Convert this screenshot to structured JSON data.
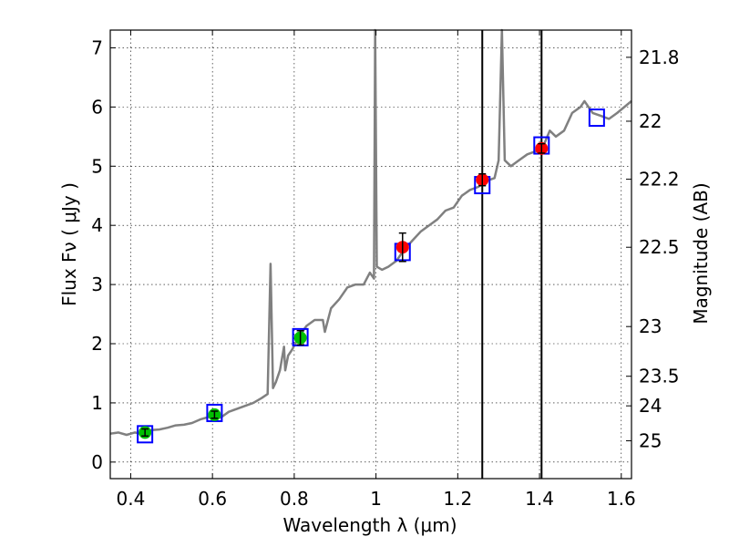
{
  "chart_data": {
    "type": "scatter",
    "xlabel": "Wavelength  λ (μm)",
    "ylabel": "Flux  Fν  ( μJy )",
    "y2label": "Magnitude (AB)",
    "xlim": [
      0.35,
      1.625
    ],
    "ylim": [
      -0.28,
      7.3
    ],
    "grid": true,
    "x_ticks": [
      {
        "value": 0.4,
        "label": "0.4"
      },
      {
        "value": 0.6,
        "label": "0.6"
      },
      {
        "value": 0.8,
        "label": "0.8"
      },
      {
        "value": 1.0,
        "label": "1"
      },
      {
        "value": 1.2,
        "label": "1.2"
      },
      {
        "value": 1.4,
        "label": "1.4"
      },
      {
        "value": 1.6,
        "label": "1.6"
      }
    ],
    "y_ticks": [
      {
        "value": 0,
        "label": "0"
      },
      {
        "value": 1,
        "label": "1"
      },
      {
        "value": 2,
        "label": "2"
      },
      {
        "value": 3,
        "label": "3"
      },
      {
        "value": 4,
        "label": "4"
      },
      {
        "value": 5,
        "label": "5"
      },
      {
        "value": 6,
        "label": "6"
      },
      {
        "value": 7,
        "label": "7"
      }
    ],
    "magnitude_ticks": [
      {
        "label": "21.8",
        "flux": 6.84
      },
      {
        "label": "22",
        "flux": 5.76
      },
      {
        "label": "22.2",
        "flux": 4.78
      },
      {
        "label": "22.5",
        "flux": 3.63
      },
      {
        "label": "23",
        "flux": 2.29
      },
      {
        "label": "23.5",
        "flux": 1.45
      },
      {
        "label": "24",
        "flux": 0.95
      },
      {
        "label": "25",
        "flux": 0.36
      }
    ],
    "vertical_lines": [
      1.26,
      1.405
    ],
    "series": [
      {
        "kind": "line",
        "color": "#808080",
        "points": [
          [
            0.35,
            0.48
          ],
          [
            0.37,
            0.5
          ],
          [
            0.39,
            0.46
          ],
          [
            0.41,
            0.5
          ],
          [
            0.43,
            0.47
          ],
          [
            0.45,
            0.54
          ],
          [
            0.47,
            0.55
          ],
          [
            0.49,
            0.58
          ],
          [
            0.51,
            0.62
          ],
          [
            0.53,
            0.63
          ],
          [
            0.55,
            0.66
          ],
          [
            0.57,
            0.72
          ],
          [
            0.59,
            0.76
          ],
          [
            0.6,
            0.78
          ],
          [
            0.62,
            0.75
          ],
          [
            0.64,
            0.85
          ],
          [
            0.66,
            0.9
          ],
          [
            0.68,
            0.95
          ],
          [
            0.7,
            1.0
          ],
          [
            0.72,
            1.08
          ],
          [
            0.735,
            1.15
          ],
          [
            0.742,
            3.35
          ],
          [
            0.748,
            1.25
          ],
          [
            0.755,
            1.35
          ],
          [
            0.765,
            1.55
          ],
          [
            0.775,
            1.95
          ],
          [
            0.778,
            1.55
          ],
          [
            0.785,
            1.8
          ],
          [
            0.795,
            1.9
          ],
          [
            0.81,
            2.1
          ],
          [
            0.83,
            2.3
          ],
          [
            0.85,
            2.4
          ],
          [
            0.87,
            2.4
          ],
          [
            0.875,
            2.2
          ],
          [
            0.89,
            2.6
          ],
          [
            0.91,
            2.75
          ],
          [
            0.93,
            2.95
          ],
          [
            0.95,
            3.0
          ],
          [
            0.97,
            3.0
          ],
          [
            0.985,
            3.2
          ],
          [
            0.995,
            3.1
          ],
          [
            0.998,
            7.3
          ],
          [
            1.002,
            3.3
          ],
          [
            1.015,
            3.25
          ],
          [
            1.03,
            3.3
          ],
          [
            1.05,
            3.4
          ],
          [
            1.07,
            3.6
          ],
          [
            1.09,
            3.75
          ],
          [
            1.11,
            3.9
          ],
          [
            1.13,
            4.0
          ],
          [
            1.15,
            4.1
          ],
          [
            1.17,
            4.25
          ],
          [
            1.19,
            4.3
          ],
          [
            1.21,
            4.5
          ],
          [
            1.23,
            4.6
          ],
          [
            1.25,
            4.65
          ],
          [
            1.27,
            4.75
          ],
          [
            1.29,
            4.8
          ],
          [
            1.3,
            5.1
          ],
          [
            1.308,
            7.3
          ],
          [
            1.315,
            5.1
          ],
          [
            1.33,
            5.0
          ],
          [
            1.35,
            5.1
          ],
          [
            1.37,
            5.2
          ],
          [
            1.39,
            5.25
          ],
          [
            1.41,
            5.35
          ],
          [
            1.425,
            5.6
          ],
          [
            1.44,
            5.5
          ],
          [
            1.46,
            5.6
          ],
          [
            1.48,
            5.9
          ],
          [
            1.5,
            6.0
          ],
          [
            1.51,
            6.1
          ],
          [
            1.53,
            5.9
          ],
          [
            1.55,
            5.85
          ],
          [
            1.57,
            5.8
          ],
          [
            1.59,
            5.9
          ],
          [
            1.625,
            6.1
          ]
        ]
      },
      {
        "kind": "model-boxes",
        "color": "#0000ff",
        "points": [
          [
            0.435,
            0.47
          ],
          [
            0.605,
            0.83
          ],
          [
            0.815,
            2.11
          ],
          [
            1.065,
            3.55
          ],
          [
            1.26,
            4.68
          ],
          [
            1.405,
            5.35
          ],
          [
            1.54,
            5.82
          ]
        ]
      },
      {
        "kind": "points",
        "color": "#00c000",
        "points": [
          {
            "x": 0.435,
            "y": 0.5,
            "err": 0.06
          },
          {
            "x": 0.605,
            "y": 0.8,
            "err": 0.06
          },
          {
            "x": 0.815,
            "y": 2.1,
            "err": 0.12
          }
        ]
      },
      {
        "kind": "points",
        "color": "#ff0000",
        "points": [
          {
            "x": 1.065,
            "y": 3.63,
            "err": 0.24
          },
          {
            "x": 1.26,
            "y": 4.77,
            "err": 0.1
          },
          {
            "x": 1.405,
            "y": 5.3,
            "err": 0.08
          }
        ]
      }
    ]
  }
}
